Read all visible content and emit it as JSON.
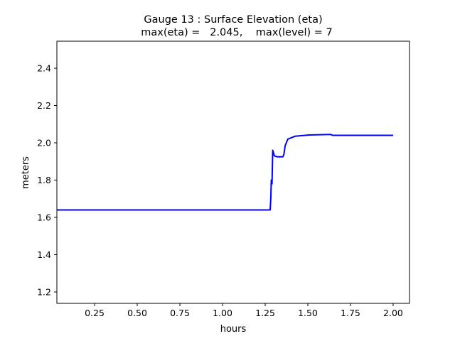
{
  "chart_data": {
    "type": "line",
    "title": "Gauge 13 : Surface Elevation (eta)",
    "subtitle": "max(eta) =   2.045,    max(level) = 7",
    "xlabel": "hours",
    "ylabel": "meters",
    "xlim": [
      0.029,
      2.096
    ],
    "ylim": [
      1.139,
      2.545
    ],
    "xticks": [
      0.25,
      0.5,
      0.75,
      1.0,
      1.25,
      1.5,
      1.75,
      2.0
    ],
    "xtick_labels": [
      "0.25",
      "0.50",
      "0.75",
      "1.00",
      "1.25",
      "1.50",
      "1.75",
      "2.00"
    ],
    "yticks": [
      1.2,
      1.4,
      1.6,
      1.8,
      2.0,
      2.2,
      2.4
    ],
    "ytick_labels": [
      "1.2",
      "1.4",
      "1.6",
      "1.8",
      "2.0",
      "2.2",
      "2.4"
    ],
    "grid": false,
    "series": [
      {
        "name": "eta",
        "color": "#0000ff",
        "x": [
          0.029,
          1.279,
          1.283,
          1.286,
          1.29,
          1.294,
          1.304,
          1.321,
          1.354,
          1.36,
          1.367,
          1.383,
          1.425,
          1.508,
          1.633,
          1.646,
          2.0
        ],
        "y": [
          1.64,
          1.64,
          1.7,
          1.8,
          1.78,
          1.96,
          1.93,
          1.925,
          1.925,
          1.94,
          1.985,
          2.02,
          2.035,
          2.042,
          2.045,
          2.04,
          2.04
        ]
      }
    ]
  }
}
